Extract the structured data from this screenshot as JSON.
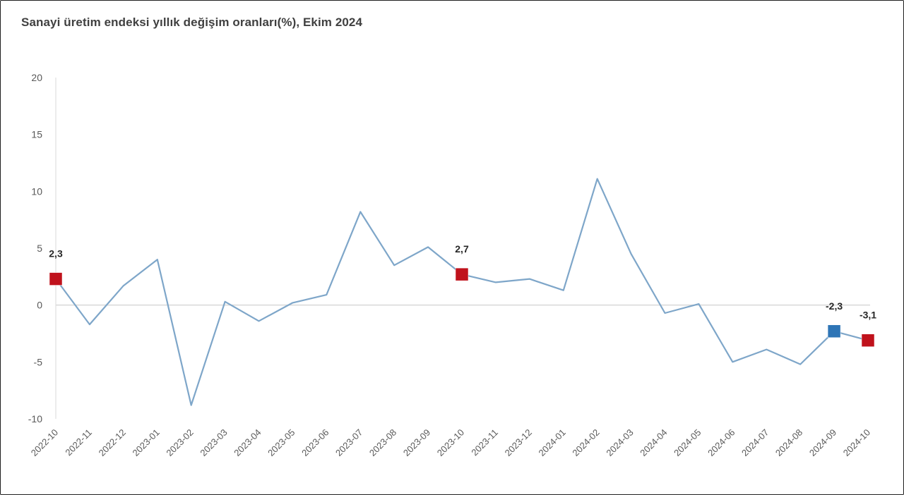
{
  "title": "Sanayi üretim endeksi yıllık değişim oranları(%), Ekim 2024",
  "chart_data": {
    "type": "line",
    "title": "Sanayi üretim endeksi yıllık değişim oranları(%), Ekim 2024",
    "xlabel": "",
    "ylabel": "",
    "ylim": [
      -10,
      20
    ],
    "yticks": [
      "20",
      "15",
      "10",
      "5",
      "0",
      "-5",
      "-10"
    ],
    "grid": false,
    "zero_line": true,
    "categories": [
      "2022-10",
      "2022-11",
      "2022-12",
      "2023-01",
      "2023-02",
      "2023-03",
      "2023-04",
      "2023-05",
      "2023-06",
      "2023-07",
      "2023-08",
      "2023-09",
      "2023-10",
      "2023-11",
      "2023-12",
      "2024-01",
      "2024-02",
      "2024-03",
      "2024-04",
      "2024-05",
      "2024-06",
      "2024-07",
      "2024-08",
      "2024-09",
      "2024-10"
    ],
    "series": [
      {
        "color": "#7ea6c9",
        "values": [
          2.3,
          -1.7,
          1.7,
          4.0,
          -8.8,
          0.3,
          -1.4,
          0.2,
          0.9,
          8.2,
          3.5,
          5.1,
          2.7,
          2.0,
          2.3,
          1.3,
          11.1,
          4.5,
          -0.7,
          0.1,
          -5.0,
          -3.9,
          -5.2,
          -2.3,
          -3.1
        ]
      }
    ],
    "highlighted_points": [
      {
        "index": 0,
        "label": "2,3",
        "color": "#c0121c"
      },
      {
        "index": 12,
        "label": "2,7",
        "color": "#c0121c"
      },
      {
        "index": 23,
        "label": "-2,3",
        "color": "#2e75b6"
      },
      {
        "index": 24,
        "label": "-3,1",
        "color": "#c0121c"
      }
    ]
  }
}
